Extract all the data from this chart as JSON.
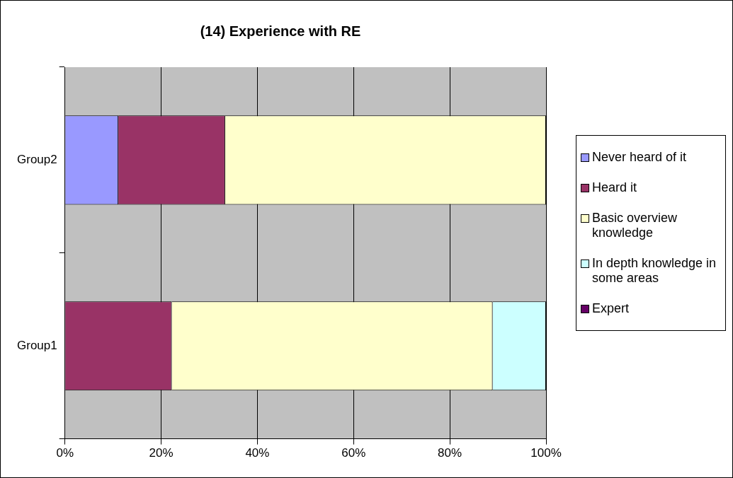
{
  "chart_data": {
    "type": "bar",
    "title": "(14) Experience with RE",
    "orientation": "horizontal",
    "stacked": true,
    "categories": [
      "Group2",
      "Group1"
    ],
    "series": [
      {
        "name": "Never heard of it",
        "color": "#9999ff",
        "values": [
          11.1,
          0
        ]
      },
      {
        "name": "Heard it",
        "color": "#993366",
        "values": [
          22.2,
          22.2
        ]
      },
      {
        "name": "Basic overview knowledge",
        "color": "#ffffcc",
        "values": [
          66.7,
          66.7
        ]
      },
      {
        "name": "In depth knowledge in some areas",
        "color": "#ccffff",
        "values": [
          0,
          11.1
        ]
      },
      {
        "name": "Expert",
        "color": "#660066",
        "values": [
          0,
          0
        ]
      }
    ],
    "xlim": [
      0,
      100
    ],
    "xticks": [
      {
        "value": 0,
        "label": "0%"
      },
      {
        "value": 20,
        "label": "20%"
      },
      {
        "value": 40,
        "label": "40%"
      },
      {
        "value": 60,
        "label": "60%"
      },
      {
        "value": 80,
        "label": "80%"
      },
      {
        "value": 100,
        "label": "100%"
      }
    ],
    "grid": "x",
    "legend": "right"
  }
}
